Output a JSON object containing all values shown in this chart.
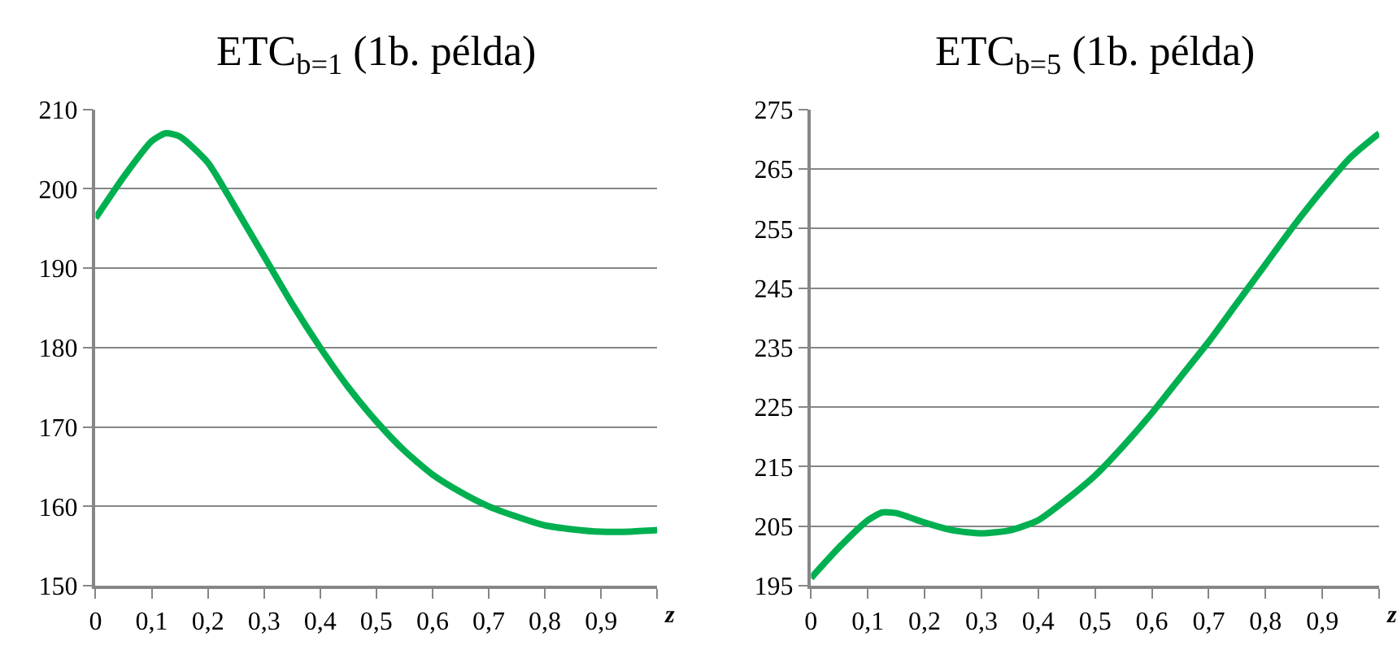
{
  "chart_data": [
    {
      "type": "line",
      "title": "ETC$_{b=1}$ (1b. példa)",
      "xlabel": "z",
      "color": "#00b050",
      "grid": "y",
      "marker": "none",
      "line_style": "solid",
      "x": [
        0,
        0.05,
        0.1,
        0.125,
        0.15,
        0.2,
        0.25,
        0.3,
        0.35,
        0.4,
        0.45,
        0.5,
        0.55,
        0.6,
        0.65,
        0.7,
        0.75,
        0.8,
        0.85,
        0.9,
        0.95,
        1
      ],
      "values": [
        196.3,
        201.5,
        206,
        207,
        206.6,
        203.3,
        197.5,
        191.5,
        185.5,
        180,
        175,
        170.7,
        167,
        164,
        161.8,
        160,
        158.7,
        157.6,
        157.1,
        156.8,
        156.8,
        157
      ],
      "xlim": [
        0,
        1
      ],
      "xticks": [
        0,
        {
          "value": 0.1,
          "label": "0,1"
        },
        {
          "value": 0.2,
          "label": "0,2"
        },
        {
          "value": 0.3,
          "label": "0,3"
        },
        {
          "value": 0.4,
          "label": "0,4"
        },
        {
          "value": 0.5,
          "label": "0,5"
        },
        {
          "value": 0.6,
          "label": "0,6"
        },
        {
          "value": 0.7,
          "label": "0,7"
        },
        {
          "value": 0.8,
          "label": "0,8"
        },
        {
          "value": 0.9,
          "label": "0,9"
        },
        {
          "value": 1,
          "label": null
        }
      ],
      "ylim": [
        150,
        210
      ],
      "yticks": [
        150,
        160,
        170,
        180,
        190,
        200,
        210
      ]
    },
    {
      "type": "line",
      "title": "ETC$_{b=5}$ (1b. példa)",
      "xlabel": "z",
      "color": "#00b050",
      "grid": "y",
      "marker": "none",
      "line_style": "solid",
      "x": [
        0,
        0.05,
        0.1,
        0.125,
        0.15,
        0.2,
        0.25,
        0.3,
        0.35,
        0.4,
        0.45,
        0.5,
        0.55,
        0.6,
        0.65,
        0.7,
        0.75,
        0.8,
        0.85,
        0.9,
        0.95,
        1
      ],
      "values": [
        196.3,
        201.5,
        206,
        207.3,
        207.2,
        205.6,
        204.3,
        203.8,
        204.3,
        206,
        209.5,
        213.5,
        218.5,
        224,
        230,
        236,
        242.5,
        249,
        255.5,
        261.5,
        267,
        271
      ],
      "xlim": [
        0,
        1
      ],
      "xticks": [
        0,
        {
          "value": 0.1,
          "label": "0,1"
        },
        {
          "value": 0.2,
          "label": "0,2"
        },
        {
          "value": 0.3,
          "label": "0,3"
        },
        {
          "value": 0.4,
          "label": "0,4"
        },
        {
          "value": 0.5,
          "label": "0,5"
        },
        {
          "value": 0.6,
          "label": "0,6"
        },
        {
          "value": 0.7,
          "label": "0,7"
        },
        {
          "value": 0.8,
          "label": "0,8"
        },
        {
          "value": 0.9,
          "label": "0,9"
        },
        {
          "value": 1,
          "label": null
        }
      ],
      "ylim": [
        195,
        275
      ],
      "yticks": [
        195,
        205,
        215,
        225,
        235,
        245,
        255,
        265,
        275
      ]
    }
  ]
}
